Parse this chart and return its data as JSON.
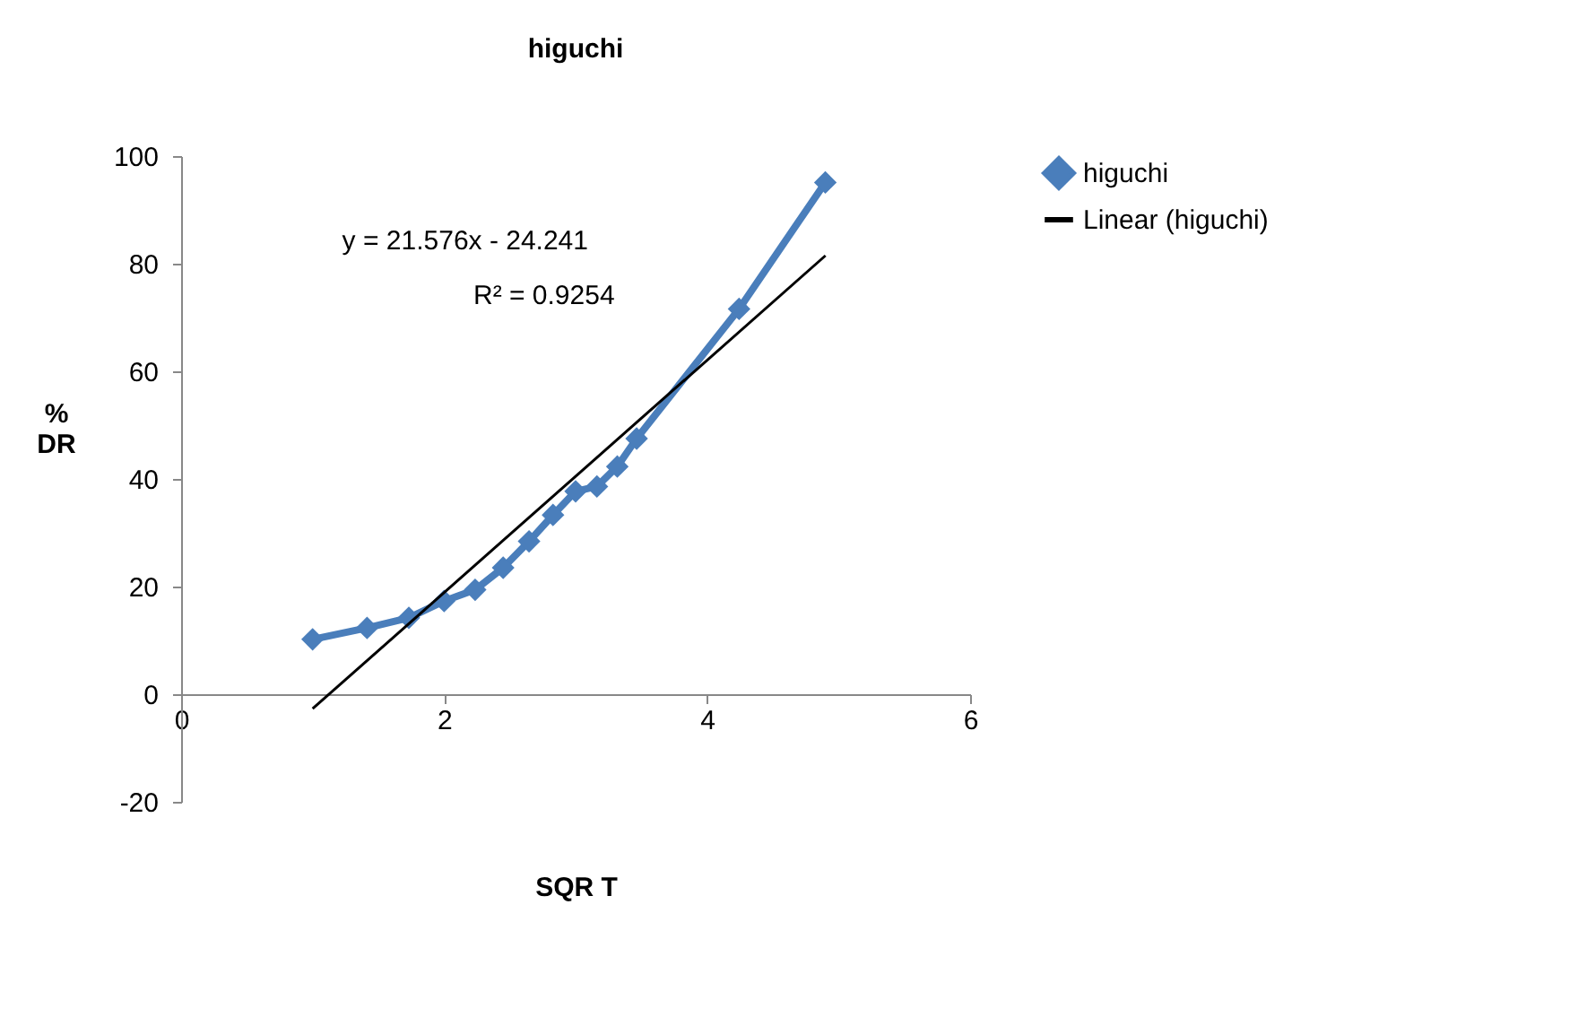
{
  "chart_data": {
    "type": "line",
    "title": "higuchi",
    "xlabel": "SQR T",
    "ylabel": "% DR",
    "xlim": [
      0,
      6
    ],
    "xticks": [
      0,
      2,
      4,
      6
    ],
    "ylim": [
      -20,
      100
    ],
    "yticks": [
      -20,
      0,
      20,
      40,
      60,
      80,
      100
    ],
    "grid": false,
    "legend": "right",
    "line_style": "solid",
    "series": [
      {
        "name": "higuchi",
        "color": "#4a7ebb",
        "marker": "diamond",
        "x": [
          1,
          1.414,
          1.732,
          2,
          2.236,
          2.449,
          2.646,
          2.828,
          3,
          3.162,
          3.317,
          3.464,
          4.243,
          4.899
        ],
        "values": [
          10.2,
          12.3,
          14.2,
          17.3,
          19.4,
          23.5,
          28.4,
          33.3,
          37.7,
          38.6,
          42.3,
          47.5,
          71.6,
          95.1
        ]
      },
      {
        "name": "Linear (higuchi)",
        "color": "#000000",
        "marker": "none",
        "x": [
          1,
          4.9
        ],
        "values": [
          -2.7,
          81.5
        ]
      }
    ],
    "annotations": [
      "y = 21.576x    - 24.241",
      "R² = 0.9254"
    ]
  }
}
